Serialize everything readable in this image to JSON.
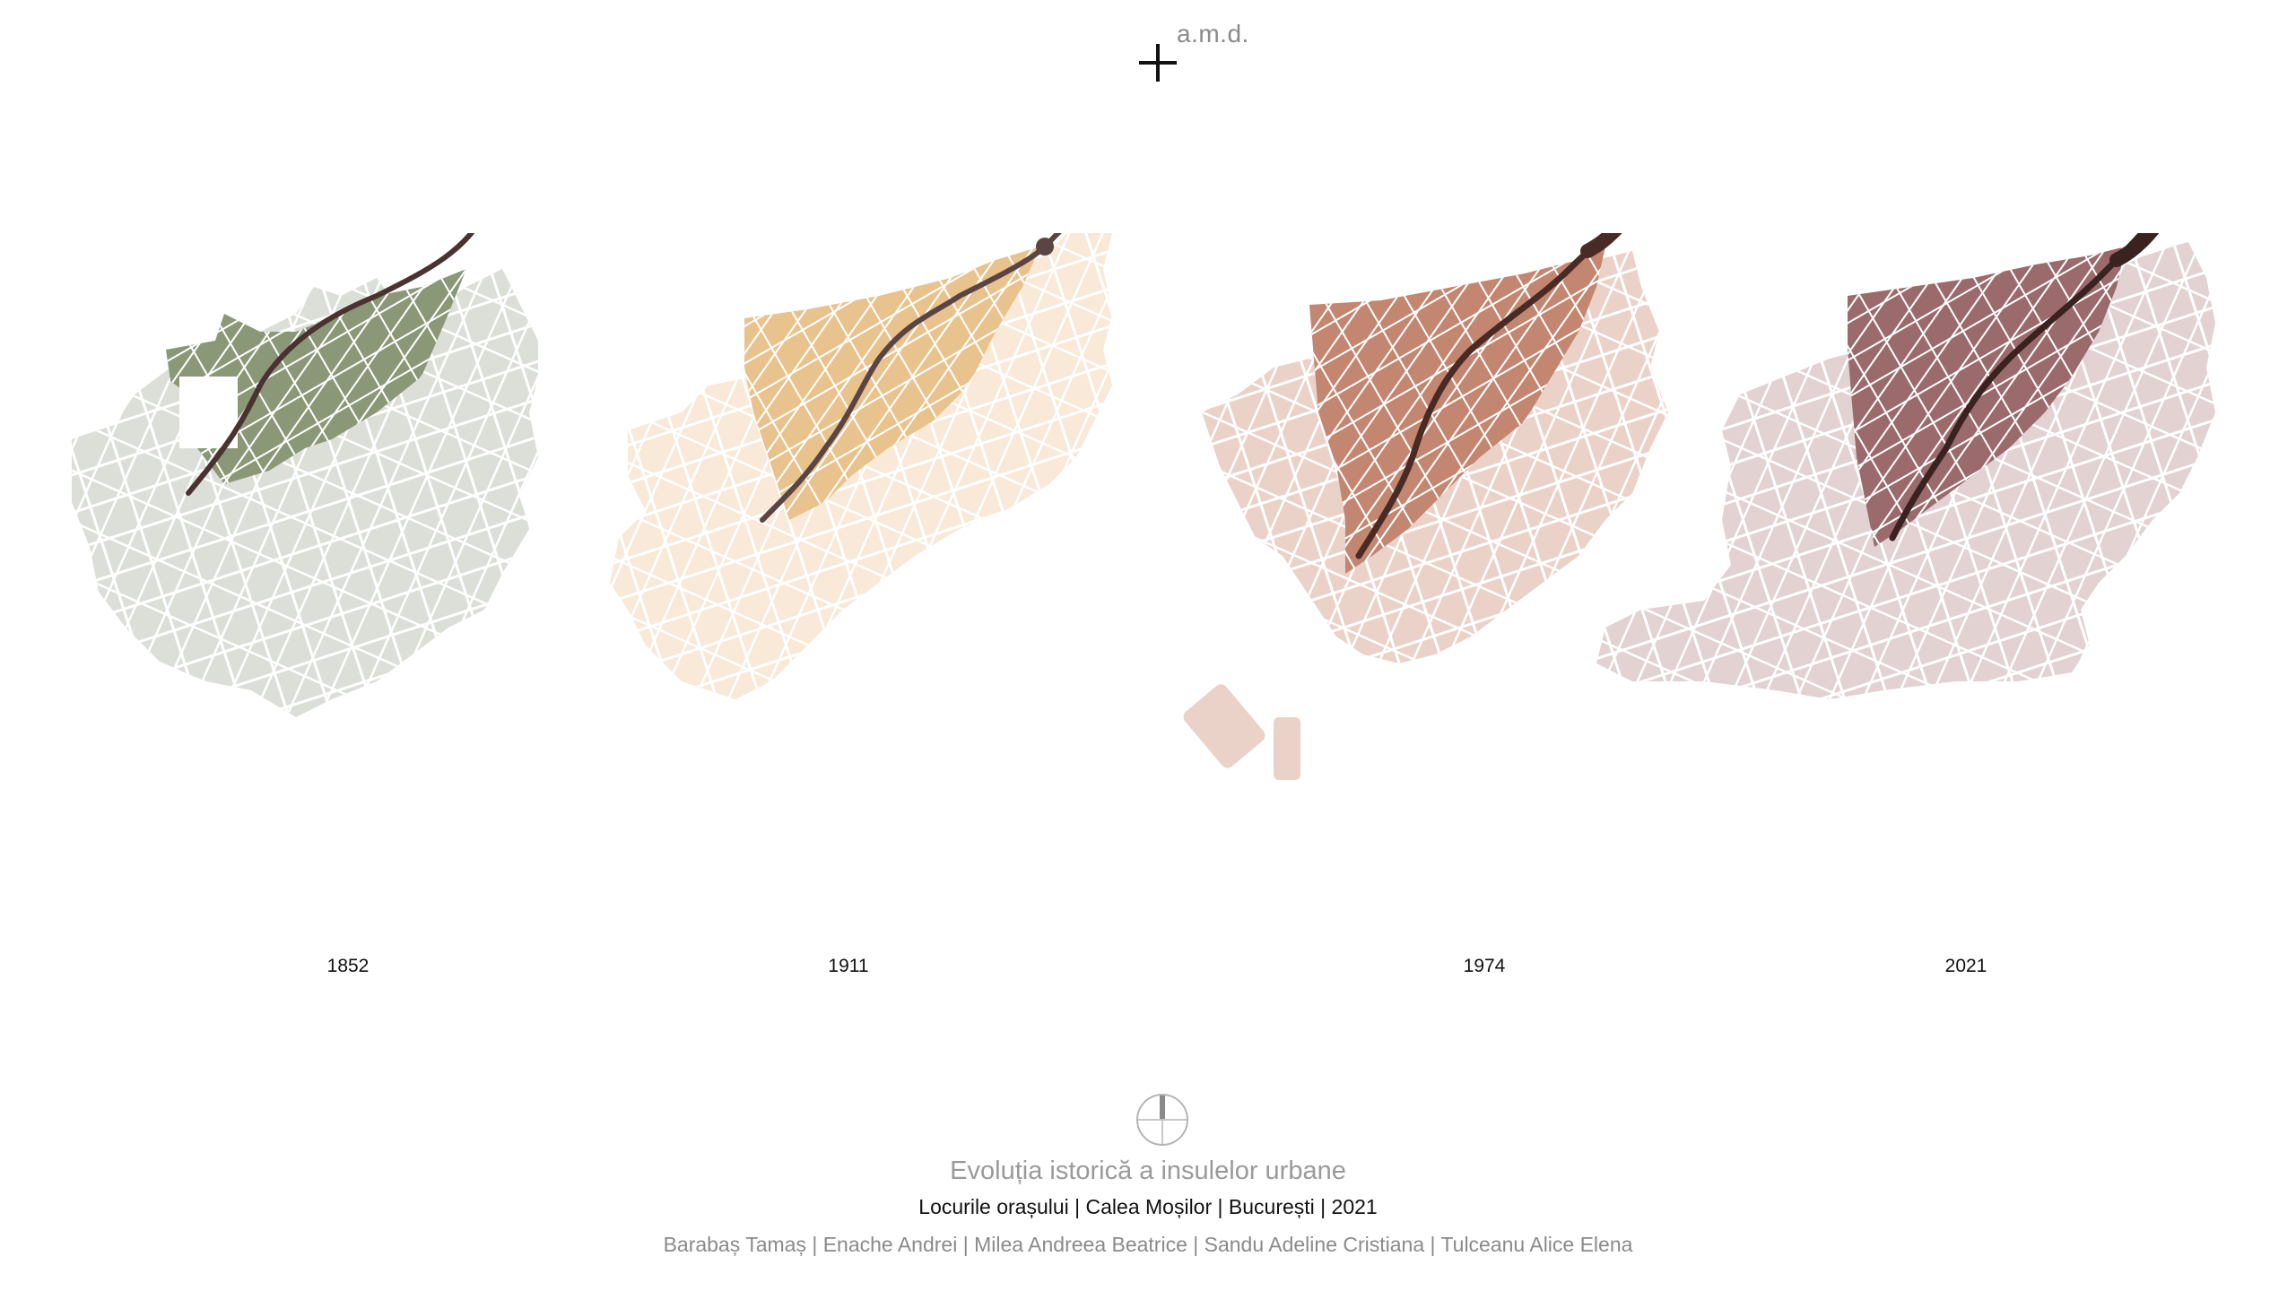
{
  "logo": {
    "text": "a.m.d."
  },
  "panels": [
    {
      "year": "1852",
      "outer_color": "#dcdfd8",
      "core_color": "#8b9878",
      "road_color": "#4a3230"
    },
    {
      "year": "1911",
      "outer_color": "#f8e9d8",
      "core_color": "#e9c38e",
      "road_color": "#5a4544"
    },
    {
      "year": "1974",
      "outer_color": "#ebd2c8",
      "core_color": "#c38670",
      "road_color": "#4a2a24"
    },
    {
      "year": "2021",
      "outer_color": "#e2d2d2",
      "core_color": "#9a6a6c",
      "road_color": "#3a2220"
    }
  ],
  "footer": {
    "title": "Evoluția istorică a insulelor urbane",
    "subtitle": "Locurile orașului | Calea Moșilor | București | 2021",
    "authors": "Barabaș Tamaș | Enache Andrei | Milea Andreea Beatrice | Sandu Adeline Cristiana | Tulceanu Alice Elena"
  },
  "icons": {
    "logo": "plus-cross-icon",
    "north": "north-arrow-icon"
  }
}
